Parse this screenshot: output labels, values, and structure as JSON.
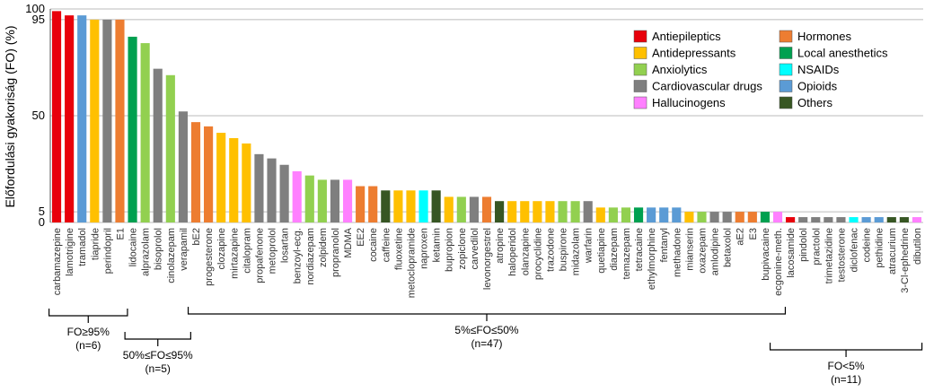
{
  "chart_data": {
    "type": "bar",
    "y_label": "Előfordulási gyakoriság (FO) (%)",
    "categories": [
      "carbamazepine",
      "lamotrigine",
      "tramadol",
      "tiapride",
      "perindopril",
      "E1",
      "lidocaine",
      "alprazolam",
      "bisoprolol",
      "cinolazepam",
      "verapamil",
      "bE2",
      "progesterone",
      "clozapine",
      "mirtazapine",
      "citalopram",
      "propafenone",
      "metoprolol",
      "losartan",
      "benzoyl-ecg.",
      "nordiazepam",
      "zolpidem",
      "propranolol",
      "MDMA",
      "EE2",
      "cocaine",
      "caffeine",
      "fluoxetine",
      "metoclopramide",
      "naproxen",
      "ketamin",
      "bupropion",
      "zopiclone",
      "carvedilol",
      "levonorgestrel",
      "atropine",
      "haloperidol",
      "olanzapine",
      "procyclidine",
      "trazodone",
      "buspirone",
      "midazolam",
      "warfarin",
      "quetiapine",
      "diazepam",
      "temazepam",
      "tetracaine",
      "ethylmorphine",
      "fentanyl",
      "methadone",
      "mianserin",
      "oxazepam",
      "amlodipine",
      "betaxolol",
      "aE2",
      "E3",
      "bupivacaine",
      "ecgonine-meth.",
      "lacosamide",
      "pindolol",
      "practolol",
      "trimetazidine",
      "testosterone",
      "diclofenac",
      "codeine",
      "pethidine",
      "atracurium",
      "3-Cl-ephedrine",
      "dibutilon"
    ],
    "values": [
      99,
      97,
      97,
      95,
      95,
      95,
      87,
      84,
      72,
      69,
      52,
      47,
      45,
      42,
      39.5,
      37,
      32,
      30,
      27,
      24,
      22,
      20,
      20,
      20,
      17,
      17,
      15,
      15,
      15,
      15,
      15,
      12,
      12,
      12,
      12,
      10,
      10,
      10,
      10,
      10,
      10,
      10,
      10,
      7,
      7,
      7,
      7,
      7,
      7,
      7,
      5,
      5,
      5,
      5,
      5,
      5,
      5,
      5,
      2.5,
      2.5,
      2.5,
      2.5,
      2.5,
      2.5,
      2.5,
      2.5,
      2.5,
      2.5,
      2.5
    ],
    "colors": [
      "#e8000b",
      "#e8000b",
      "#5b9bd5",
      "#ffc000",
      "#7f7f7f",
      "#ed7d31",
      "#00a050",
      "#92d050",
      "#7f7f7f",
      "#92d050",
      "#7f7f7f",
      "#ed7d31",
      "#ed7d31",
      "#ffc000",
      "#ffc000",
      "#ffc000",
      "#7f7f7f",
      "#7f7f7f",
      "#7f7f7f",
      "#ff80ff",
      "#92d050",
      "#92d050",
      "#7f7f7f",
      "#ff80ff",
      "#ed7d31",
      "#ed7d31",
      "#375623",
      "#ffc000",
      "#ffc000",
      "#00ffff",
      "#375623",
      "#ffc000",
      "#92d050",
      "#7f7f7f",
      "#ed7d31",
      "#375623",
      "#ffc000",
      "#ffc000",
      "#ffc000",
      "#ffc000",
      "#92d050",
      "#92d050",
      "#7f7f7f",
      "#ffc000",
      "#92d050",
      "#92d050",
      "#00a050",
      "#5b9bd5",
      "#5b9bd5",
      "#5b9bd5",
      "#ffc000",
      "#92d050",
      "#7f7f7f",
      "#7f7f7f",
      "#ed7d31",
      "#ed7d31",
      "#00a050",
      "#ff80ff",
      "#e8000b",
      "#7f7f7f",
      "#7f7f7f",
      "#7f7f7f",
      "#7f7f7f",
      "#00ffff",
      "#5b9bd5",
      "#5b9bd5",
      "#375623",
      "#375623",
      "#ff80ff"
    ],
    "legend": [
      {
        "name": "Antiepileptics",
        "color": "#e8000b"
      },
      {
        "name": "Antidepressants",
        "color": "#ffc000"
      },
      {
        "name": "Anxiolytics",
        "color": "#92d050"
      },
      {
        "name": "Cardiovascular drugs",
        "color": "#7f7f7f"
      },
      {
        "name": "Hallucinogens",
        "color": "#ff80ff"
      },
      {
        "name": "Hormones",
        "color": "#ed7d31"
      },
      {
        "name": "Local anesthetics",
        "color": "#00a050"
      },
      {
        "name": "NSAIDs",
        "color": "#00ffff"
      },
      {
        "name": "Opioids",
        "color": "#5b9bd5"
      },
      {
        "name": "Others",
        "color": "#375623"
      }
    ],
    "groups": [
      {
        "label": "FO≥95%",
        "n": "(n=6)"
      },
      {
        "label": "50%≤FO≤95%",
        "n": "(n=5)"
      },
      {
        "label": "5%≤FO≤50%",
        "n": "(n=47)"
      },
      {
        "label": "FO<5%",
        "n": "(n=11)"
      }
    ],
    "ylim": [
      0,
      100
    ],
    "yticks": [
      0,
      5,
      50,
      95,
      100
    ],
    "grid": true
  }
}
